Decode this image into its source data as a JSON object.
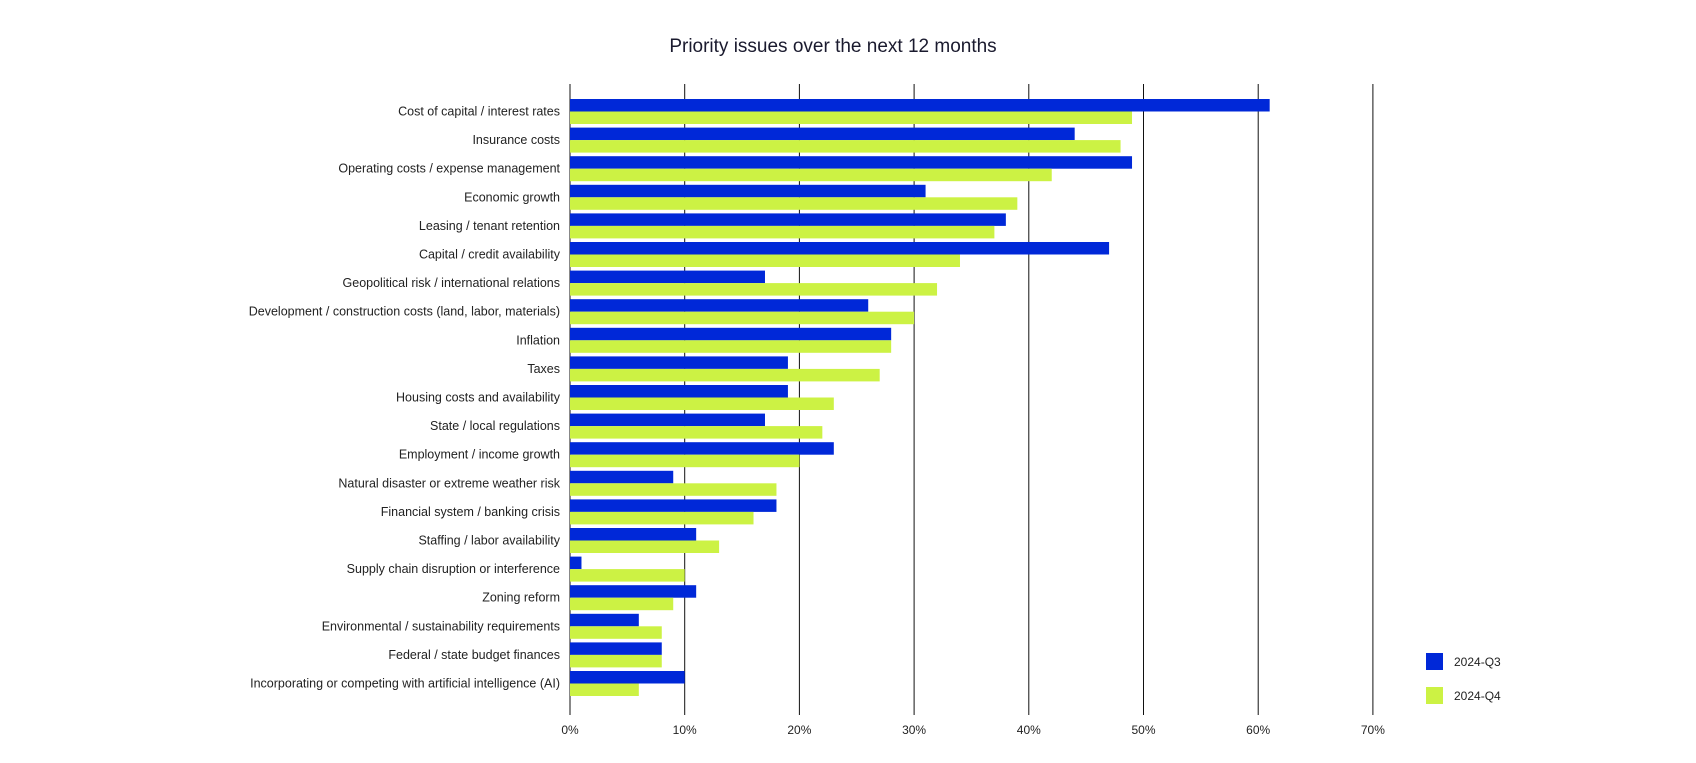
{
  "chart_data": {
    "type": "bar",
    "orientation": "horizontal",
    "title": "Priority issues over the next 12 months",
    "xlabel": "",
    "ylabel": "",
    "xlim": [
      0,
      70
    ],
    "x_ticks": [
      "0%",
      "10%",
      "20%",
      "30%",
      "40%",
      "50%",
      "60%",
      "70%"
    ],
    "grid": true,
    "legend_position": "bottom-right",
    "categories": [
      "Cost of capital / interest rates",
      "Insurance costs",
      "Operating costs / expense management",
      "Economic growth",
      "Leasing / tenant retention",
      "Capital / credit availability",
      "Geopolitical risk / international relations",
      "Development / construction costs (land, labor, materials)",
      "Inflation",
      "Taxes",
      "Housing costs and availability",
      "State / local regulations",
      "Employment / income growth",
      "Natural disaster or extreme weather risk",
      "Financial system / banking crisis",
      "Staffing / labor availability",
      "Supply chain disruption or interference",
      "Zoning reform",
      "Environmental / sustainability requirements",
      "Federal / state budget finances",
      "Incorporating or competing with artificial intelligence (AI)"
    ],
    "series": [
      {
        "name": "2024-Q3",
        "color": "#0028d8",
        "values": [
          61,
          44,
          49,
          31,
          38,
          47,
          17,
          26,
          28,
          19,
          19,
          17,
          23,
          9,
          18,
          11,
          1,
          11,
          6,
          8,
          10
        ]
      },
      {
        "name": "2024-Q4",
        "color": "#ccf244",
        "values": [
          49,
          48,
          42,
          39,
          37,
          34,
          32,
          30,
          28,
          27,
          23,
          22,
          20,
          18,
          16,
          13,
          10,
          9,
          8,
          8,
          6
        ]
      }
    ]
  }
}
